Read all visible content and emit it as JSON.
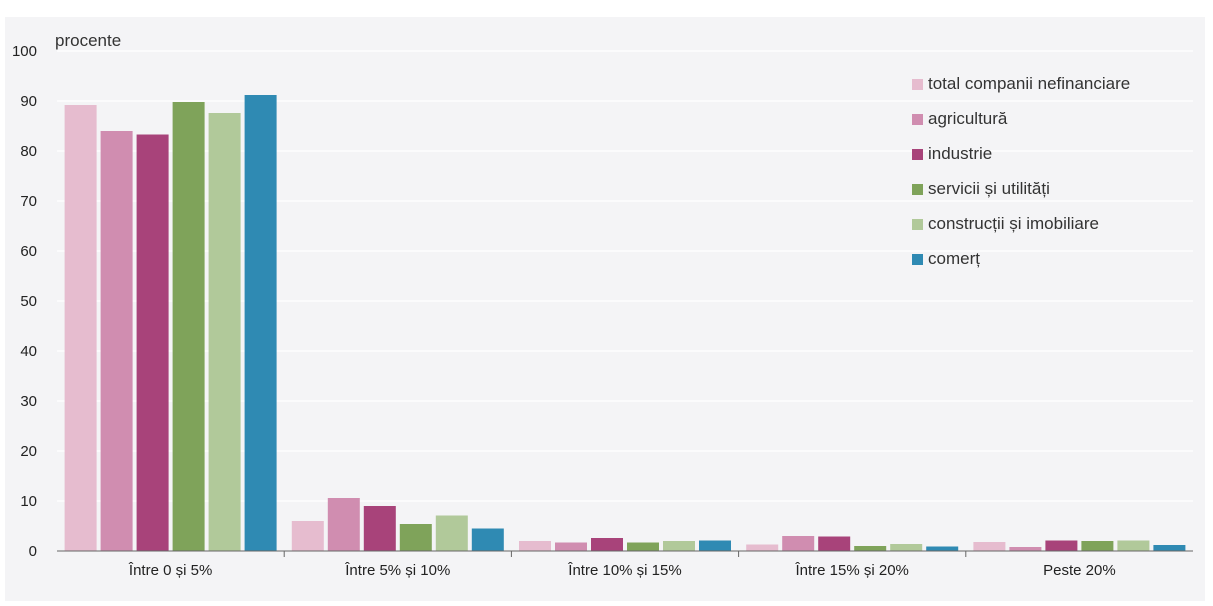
{
  "chart_data": {
    "type": "bar",
    "unit_label": "procente",
    "categories": [
      "Între 0 și 5%",
      "Între 5% și 10%",
      "Între 10% și 15%",
      "Între 15% și 20%",
      "Peste 20%"
    ],
    "series": [
      {
        "name": "total companii nefinanciare",
        "color": "#e6bccf",
        "values": [
          89.2,
          6.0,
          2.0,
          1.3,
          1.8
        ]
      },
      {
        "name": "agricultură",
        "color": "#d08db0",
        "values": [
          84.0,
          10.6,
          1.7,
          3.0,
          0.8
        ]
      },
      {
        "name": "industrie",
        "color": "#a8437a",
        "values": [
          83.3,
          9.0,
          2.6,
          2.9,
          2.1
        ]
      },
      {
        "name": "servicii și utilități",
        "color": "#7fa35a",
        "values": [
          89.8,
          5.4,
          1.7,
          1.0,
          2.0
        ]
      },
      {
        "name": "construcții și imobiliare",
        "color": "#b1c99a",
        "values": [
          87.6,
          7.1,
          2.0,
          1.4,
          2.1
        ]
      },
      {
        "name": "comerț",
        "color": "#2f8ab3",
        "values": [
          91.2,
          4.5,
          2.1,
          0.9,
          1.2
        ]
      }
    ],
    "ylim": [
      0,
      100
    ],
    "yticks": [
      0,
      10,
      20,
      30,
      40,
      50,
      60,
      70,
      80,
      90,
      100
    ],
    "grid": true,
    "legend_position": "top-right"
  }
}
